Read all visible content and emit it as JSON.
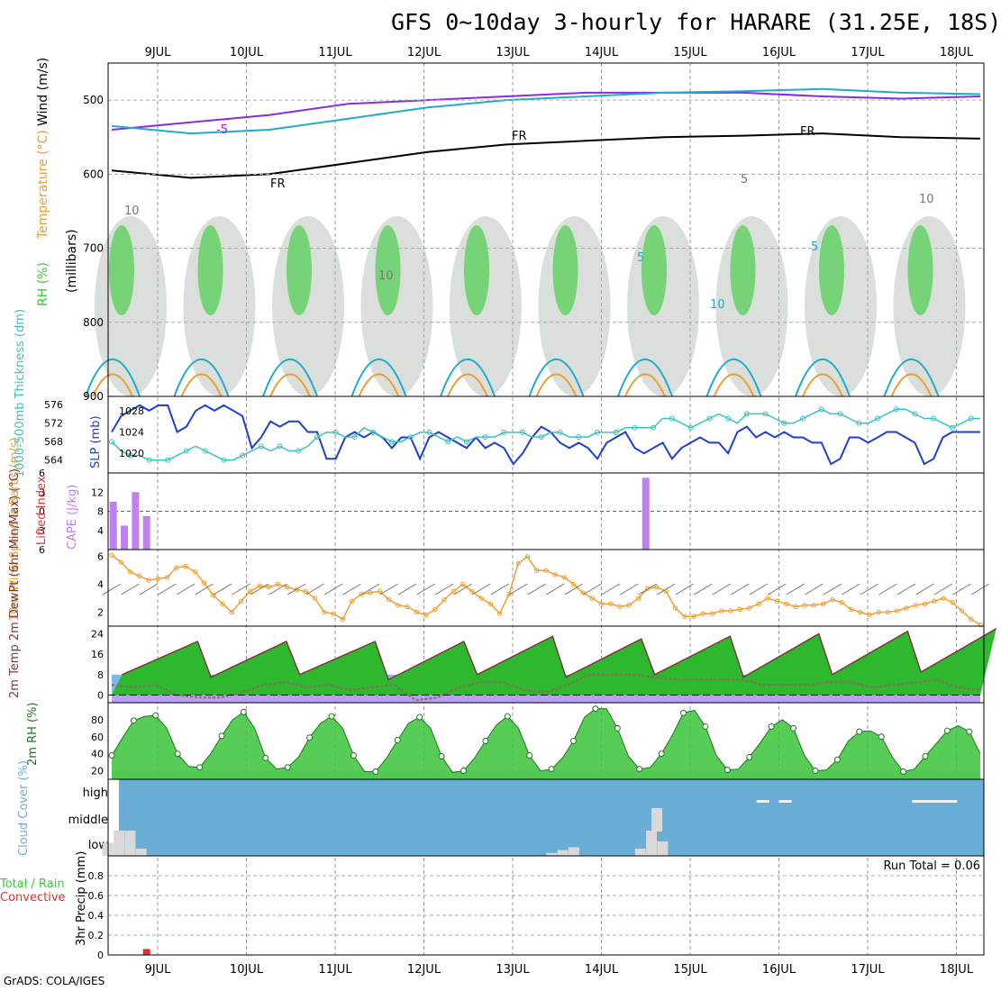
{
  "title": "GFS 0~10day 3-hourly for HARARE (31.25E, 18S)",
  "credit": "GrADS: COLA/IGES",
  "colors": {
    "rh_green": "#33cc33",
    "rh_grey": "#b0b8b0",
    "temp_orange": "#e8a030",
    "temp_cyan": "#22aacc",
    "temp_purple": "#8a2be2",
    "slp_blue": "#1f3fcf",
    "thickness_cyan": "#3fc0c0",
    "cape_purple": "#c080f0",
    "lifted_red": "#e03030",
    "wind_orange": "#f0a030",
    "dewpt_brown": "#8b6a5a",
    "cloud_blue": "#6aaed6"
  },
  "chart_data": [
    {
      "type": "heatmap",
      "panel": "upper-air",
      "ylabel_parts": [
        "RH (%)",
        "Temperature (°C)",
        "Wind (m/s)"
      ],
      "ylabel_units": "(millibars)",
      "x_ticks": [
        "9JUL",
        "10JUL",
        "11JUL",
        "12JUL",
        "13JUL",
        "14JUL",
        "15JUL",
        "16JUL",
        "17JUL",
        "18JUL"
      ],
      "y_ticks": [
        500,
        600,
        700,
        800,
        900
      ],
      "ylim": [
        900,
        450
      ],
      "contour_labels": [
        "-5",
        "5",
        "FR",
        "FR",
        "FR",
        "10",
        "5",
        "5",
        "10",
        "10",
        "10"
      ],
      "freezing_level_mb": [
        595,
        605,
        600,
        585,
        570,
        560,
        555,
        550,
        548,
        545,
        550,
        552
      ],
      "minus5_level_mb": [
        540,
        530,
        520,
        505,
        500,
        495,
        490,
        490,
        490,
        495,
        498,
        495
      ]
    },
    {
      "type": "line",
      "panel": "thickness-slp",
      "ylabel_left": "1000-500mb Thickness (dm)",
      "ylabel_right": "SLP (mb)",
      "thickness_ticks": [
        564,
        568,
        572,
        576
      ],
      "slp_ticks": [
        1020,
        1024,
        1028
      ],
      "series": [
        {
          "name": "SLP (mb)",
          "values": [
            1024,
            1027,
            1028,
            1029,
            1028,
            1029,
            1029,
            1024,
            1025,
            1028,
            1029,
            1028,
            1029,
            1028,
            1027,
            1021,
            1023,
            1026,
            1025,
            1026,
            1026,
            1024,
            1024,
            1019,
            1019,
            1023,
            1024,
            1023,
            1024,
            1023,
            1021,
            1023,
            1023,
            1019,
            1023,
            1024,
            1023,
            1022,
            1021,
            1023,
            1021,
            1022,
            1021,
            1018,
            1020,
            1023,
            1025,
            1024,
            1022,
            1021,
            1022,
            1021,
            1019,
            1022,
            1023,
            1024,
            1021,
            1020,
            1021,
            1022,
            1019,
            1021,
            1022,
            1023,
            1022,
            1022,
            1020,
            1024,
            1025,
            1023,
            1024,
            1023,
            1024,
            1023,
            1023,
            1022,
            1022,
            1018,
            1019,
            1023,
            1023,
            1022,
            1023,
            1024,
            1024,
            1023,
            1022,
            1018,
            1019,
            1023,
            1024,
            1024,
            1024,
            1024
          ]
        },
        {
          "name": "1000-500mb Thickness (dm)",
          "values": [
            568,
            566,
            565,
            565,
            564,
            564,
            564,
            565,
            566,
            567,
            566,
            565,
            564,
            564,
            565,
            566,
            567,
            566,
            567,
            566,
            566,
            567,
            569,
            570,
            570,
            569,
            569,
            571,
            570,
            569,
            568,
            568,
            569,
            570,
            570,
            569,
            568,
            569,
            568,
            569,
            569,
            569,
            570,
            570,
            570,
            569,
            569,
            570,
            570,
            569,
            569,
            569,
            570,
            570,
            570,
            571,
            571,
            571,
            571,
            573,
            573,
            572,
            571,
            572,
            573,
            574,
            573,
            572,
            574,
            574,
            574,
            573,
            572,
            572,
            573,
            574,
            575,
            574,
            574,
            573,
            572,
            572,
            573,
            574,
            575,
            575,
            574,
            573,
            573,
            572,
            571,
            572,
            573,
            573
          ]
        }
      ]
    },
    {
      "type": "bar",
      "panel": "cape-lifted-index",
      "ylabel_left": "Lifted Index",
      "ylabel_right": "CAPE (J/kg)",
      "li_ticks": [
        -6,
        -3,
        0,
        3,
        6
      ],
      "cape_ticks": [
        4,
        8,
        12
      ],
      "cape_events": [
        {
          "day": 8.5,
          "value": 10
        },
        {
          "day": 8.625,
          "value": 5
        },
        {
          "day": 8.75,
          "value": 12
        },
        {
          "day": 8.875,
          "value": 7
        },
        {
          "day": 14.5,
          "value": 15
        }
      ]
    },
    {
      "type": "line",
      "panel": "10m-wind",
      "ylabel": "10m Wind Speed & Barbs (m/s)",
      "ylim": [
        1,
        6.5
      ],
      "y_ticks": [
        2,
        4,
        6
      ],
      "series": [
        {
          "name": "10m Wind Speed",
          "values": [
            6.1,
            5.6,
            4.9,
            4.6,
            4.3,
            4.4,
            4.5,
            5.2,
            5.3,
            4.9,
            4.1,
            3.2,
            2.6,
            2.0,
            2.8,
            3.5,
            3.9,
            3.8,
            4.0,
            3.8,
            3.6,
            3.5,
            3.0,
            2.0,
            1.9,
            1.5,
            2.8,
            3.3,
            3.4,
            3.5,
            2.9,
            2.5,
            2.4,
            2.0,
            1.8,
            2.2,
            2.9,
            3.5,
            4.0,
            3.5,
            3.0,
            2.6,
            1.9,
            3.3,
            5.5,
            6.0,
            5.0,
            5.0,
            4.7,
            4.5,
            4.0,
            3.4,
            3.0,
            2.6,
            2.6,
            2.4,
            2.5,
            3.0,
            3.7,
            3.8,
            3.5,
            2.3,
            1.7,
            1.7,
            1.9,
            1.9,
            2.1,
            2.1,
            2.2,
            2.3,
            2.6,
            3.0,
            2.8,
            2.6,
            2.4,
            2.5,
            2.5,
            2.6,
            2.9,
            2.7,
            2.2,
            2.0,
            1.8,
            2.0,
            2.0,
            2.1,
            2.3,
            2.5,
            2.6,
            2.8,
            3.0,
            2.7,
            2.1,
            1.5,
            1.1
          ]
        }
      ]
    },
    {
      "type": "area",
      "panel": "2m-temp",
      "ylabel": "2m Temp 2m DewPt (6hr Min/Max) (°C)",
      "ylim": [
        -3,
        27
      ],
      "y_ticks": [
        0,
        8,
        16,
        24
      ],
      "temp_mins": [
        8,
        7,
        8,
        6,
        8,
        7,
        8,
        7,
        8,
        9
      ],
      "temp_maxs": [
        21,
        21,
        21,
        21,
        23,
        22,
        23,
        24,
        25,
        26
      ],
      "dewpoint": [
        4,
        3,
        4,
        0,
        -1,
        -1,
        1,
        4,
        5,
        3,
        4,
        2,
        3,
        4,
        -2,
        -1,
        3,
        5,
        5,
        2,
        1,
        4,
        8,
        8,
        8,
        7,
        6,
        6,
        6,
        6,
        4,
        4,
        4,
        5,
        5,
        3,
        4,
        5,
        6,
        3,
        2
      ]
    },
    {
      "type": "area",
      "panel": "2m-rh",
      "ylabel": "2m RH (%)",
      "ylim": [
        10,
        100
      ],
      "y_ticks": [
        20,
        40,
        60,
        80
      ],
      "values": [
        38,
        59,
        79,
        84,
        85,
        70,
        40,
        25,
        24,
        40,
        61,
        80,
        89,
        70,
        35,
        22,
        24,
        36,
        59,
        76,
        84,
        70,
        38,
        19,
        19,
        35,
        56,
        76,
        83,
        70,
        37,
        18,
        20,
        35,
        55,
        74,
        84,
        70,
        38,
        20,
        22,
        35,
        55,
        83,
        93,
        93,
        70,
        37,
        22,
        24,
        40,
        62,
        88,
        91,
        72,
        38,
        21,
        22,
        36,
        53,
        72,
        80,
        70,
        38,
        20,
        21,
        33,
        55,
        66,
        67,
        60,
        36,
        19,
        22,
        37,
        52,
        67,
        73,
        66,
        40
      ]
    },
    {
      "type": "bar",
      "panel": "cloud-cover",
      "ylabel": "Cloud Cover (%)",
      "levels": [
        "high",
        "middle",
        "low"
      ],
      "low_events": [
        {
          "day": 8.5,
          "value": 18
        },
        {
          "day": 8.625,
          "value": 35
        },
        {
          "day": 8.75,
          "value": 35
        },
        {
          "day": 8.875,
          "value": 10
        },
        {
          "day": 13.5,
          "value": 4
        },
        {
          "day": 13.625,
          "value": 8
        },
        {
          "day": 13.75,
          "value": 12
        },
        {
          "day": 14.5,
          "value": 10
        },
        {
          "day": 14.625,
          "value": 35
        },
        {
          "day": 14.75,
          "value": 20
        }
      ],
      "middle_events": [
        {
          "day": 14.625,
          "value": 60
        }
      ],
      "high_events": [
        {
          "day": 15.75,
          "value": 10
        },
        {
          "day": 16.0,
          "value": 10
        },
        {
          "day": 17.5,
          "value": 10
        }
      ]
    },
    {
      "type": "bar",
      "panel": "precip",
      "ylabel_parts": [
        "Total / Rain",
        "Convective",
        "3hr Precip (mm)"
      ],
      "ylim": [
        0,
        1.0
      ],
      "y_ticks": [
        0,
        0.2,
        0.4,
        0.6,
        0.8
      ],
      "run_total": "Run Total = 0.06",
      "events": [
        {
          "day": 8.875,
          "value": 0.06
        }
      ]
    }
  ]
}
